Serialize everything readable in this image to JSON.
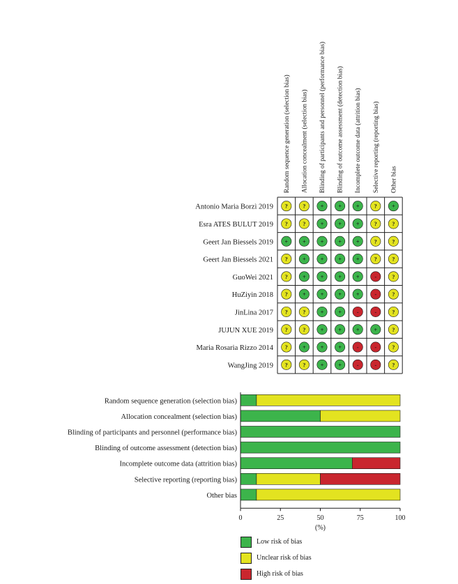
{
  "colors": {
    "low": "#3cb44b",
    "unclear": "#e3e320",
    "high": "#c9262e",
    "border": "#222222"
  },
  "chart_data": [
    {
      "type": "table",
      "columns": [
        "Random sequence generation (selection bias)",
        "Allocation concealment (selection bias)",
        "Blinding of participants and personnel (performance bias)",
        "Blinding of outcome assessment (detection bias)",
        "Incomplete outcome data (attrition bias)",
        "Selective reporting (reporting bias)",
        "Other bias"
      ],
      "rows": [
        {
          "study": "Antonio Maria Borzì 2019",
          "judgements": [
            "?",
            "?",
            "+",
            "+",
            "+",
            "?",
            "+"
          ]
        },
        {
          "study": "Esra ATES BULUT 2019",
          "judgements": [
            "?",
            "?",
            "+",
            "+",
            "+",
            "?",
            "?"
          ]
        },
        {
          "study": "Geert Jan Biessels 2019",
          "judgements": [
            "+",
            "+",
            "+",
            "+",
            "+",
            "?",
            "?"
          ]
        },
        {
          "study": "Geert Jan Biessels 2021",
          "judgements": [
            "?",
            "+",
            "+",
            "+",
            "+",
            "?",
            "?"
          ]
        },
        {
          "study": "GuoWei 2021",
          "judgements": [
            "?",
            "+",
            "+",
            "+",
            "+",
            "-",
            "?"
          ]
        },
        {
          "study": "HuZiyin 2018",
          "judgements": [
            "?",
            "+",
            "+",
            "+",
            "+",
            "-",
            "?"
          ]
        },
        {
          "study": "JinLina 2017",
          "judgements": [
            "?",
            "?",
            "+",
            "+",
            "-",
            "-",
            "?"
          ]
        },
        {
          "study": "JUJUN XUE 2019",
          "judgements": [
            "?",
            "?",
            "+",
            "+",
            "+",
            "+",
            "?"
          ]
        },
        {
          "study": "Maria Rosaria Rizzo 2014",
          "judgements": [
            "?",
            "+",
            "+",
            "+",
            "-",
            "-",
            "?"
          ]
        },
        {
          "study": "WangJing 2019",
          "judgements": [
            "?",
            "?",
            "+",
            "+",
            "-",
            "-",
            "?"
          ]
        }
      ],
      "legend": [
        "+",
        "?",
        "-"
      ]
    },
    {
      "type": "bar",
      "orientation": "horizontal",
      "stacked": true,
      "categories": [
        "Random sequence generation (selection bias)",
        "Allocation concealment (selection bias)",
        "Blinding of participants and personnel (performance bias)",
        "Blinding of outcome assessment (detection bias)",
        "Incomplete outcome data (attrition bias)",
        "Selective reporting (reporting bias)",
        "Other bias"
      ],
      "series": [
        {
          "name": "Low risk of bias",
          "color": "#3cb44b",
          "values": [
            10,
            50,
            100,
            100,
            70,
            10,
            10
          ]
        },
        {
          "name": "Unclear risk of bias",
          "color": "#e3e320",
          "values": [
            90,
            50,
            0,
            0,
            0,
            40,
            90
          ]
        },
        {
          "name": "High risk of bias",
          "color": "#c9262e",
          "values": [
            0,
            0,
            0,
            0,
            30,
            50,
            0
          ]
        }
      ],
      "xticks": [
        "0",
        "25",
        "50",
        "75",
        "100"
      ],
      "xlim": [
        0,
        100
      ],
      "xlabel": "(%)",
      "legend_position": "bottom"
    }
  ]
}
